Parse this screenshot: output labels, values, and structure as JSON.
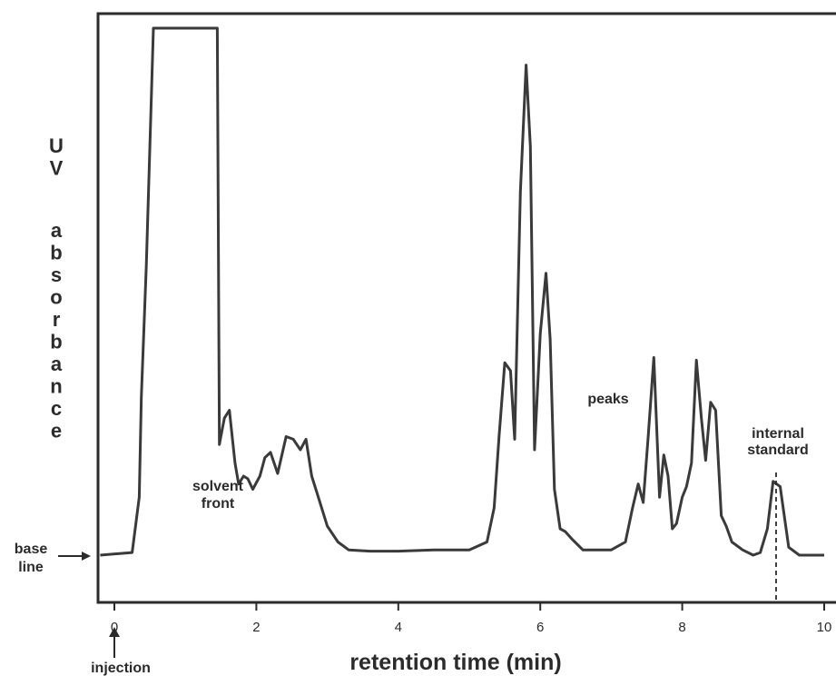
{
  "chart_data": {
    "type": "line",
    "title": "",
    "xlabel": "retention time (min)",
    "ylabel": "UV absorbance",
    "xlim": [
      -0.2,
      10.0
    ],
    "xticks": [
      0,
      2,
      4,
      6,
      8,
      10
    ],
    "xtick_labels": [
      "0",
      "2",
      "4",
      "6",
      "8",
      "10"
    ],
    "grid": false,
    "trace_color": "#3a3a3a",
    "series": [
      {
        "x": [
          -0.2,
          0.25,
          0.35,
          0.38,
          0.45,
          0.55,
          1.45,
          1.48,
          1.5,
          1.55,
          1.62,
          1.7,
          1.75,
          1.82,
          1.88,
          1.95,
          2.05,
          2.12,
          2.2,
          2.3,
          2.42,
          2.52,
          2.62,
          2.7,
          2.78,
          2.85,
          3.0,
          3.15,
          3.3,
          3.6,
          4.0,
          4.5,
          5.0,
          5.25,
          5.35,
          5.42,
          5.5,
          5.58,
          5.64,
          5.72,
          5.8,
          5.86,
          5.92,
          6.0,
          6.08,
          6.14,
          6.2,
          6.28,
          6.35,
          6.45,
          6.6,
          7.0,
          7.2,
          7.3,
          7.38,
          7.45,
          7.52,
          7.6,
          7.68,
          7.74,
          7.8,
          7.86,
          7.92,
          8.0,
          8.06,
          8.13,
          8.2,
          8.27,
          8.33,
          8.4,
          8.47,
          8.55,
          8.62,
          8.7,
          8.85,
          9.0,
          9.1,
          9.2,
          9.28,
          9.38,
          9.5,
          9.65,
          10.0
        ],
        "y": [
          0.0,
          0.01,
          0.22,
          0.6,
          1.1,
          2.0,
          2.0,
          0.42,
          0.45,
          0.52,
          0.55,
          0.35,
          0.27,
          0.3,
          0.29,
          0.25,
          0.3,
          0.37,
          0.39,
          0.31,
          0.45,
          0.44,
          0.4,
          0.44,
          0.3,
          0.24,
          0.11,
          0.05,
          0.02,
          0.015,
          0.015,
          0.02,
          0.02,
          0.05,
          0.18,
          0.45,
          0.73,
          0.7,
          0.44,
          1.38,
          1.86,
          1.55,
          0.4,
          0.84,
          1.07,
          0.82,
          0.25,
          0.1,
          0.09,
          0.06,
          0.02,
          0.02,
          0.05,
          0.18,
          0.27,
          0.2,
          0.45,
          0.75,
          0.22,
          0.38,
          0.3,
          0.1,
          0.12,
          0.22,
          0.26,
          0.35,
          0.74,
          0.52,
          0.36,
          0.58,
          0.55,
          0.15,
          0.11,
          0.05,
          0.02,
          0.0,
          0.01,
          0.1,
          0.28,
          0.26,
          0.03,
          0.0,
          0.0
        ]
      }
    ],
    "annotations": [
      {
        "id": "solvent_front",
        "lines": [
          "solvent",
          "front"
        ],
        "x": 1.95,
        "y": 0.22
      },
      {
        "id": "peaks",
        "lines": [
          "peaks"
        ],
        "x": 6.6,
        "y": 0.48
      },
      {
        "id": "internal_standard",
        "lines": [
          "internal",
          "standard"
        ],
        "x": 9.3,
        "y": 0.35
      },
      {
        "id": "base_line",
        "lines": [
          "base",
          "line"
        ]
      },
      {
        "id": "injection",
        "lines": [
          "injection"
        ]
      }
    ]
  }
}
